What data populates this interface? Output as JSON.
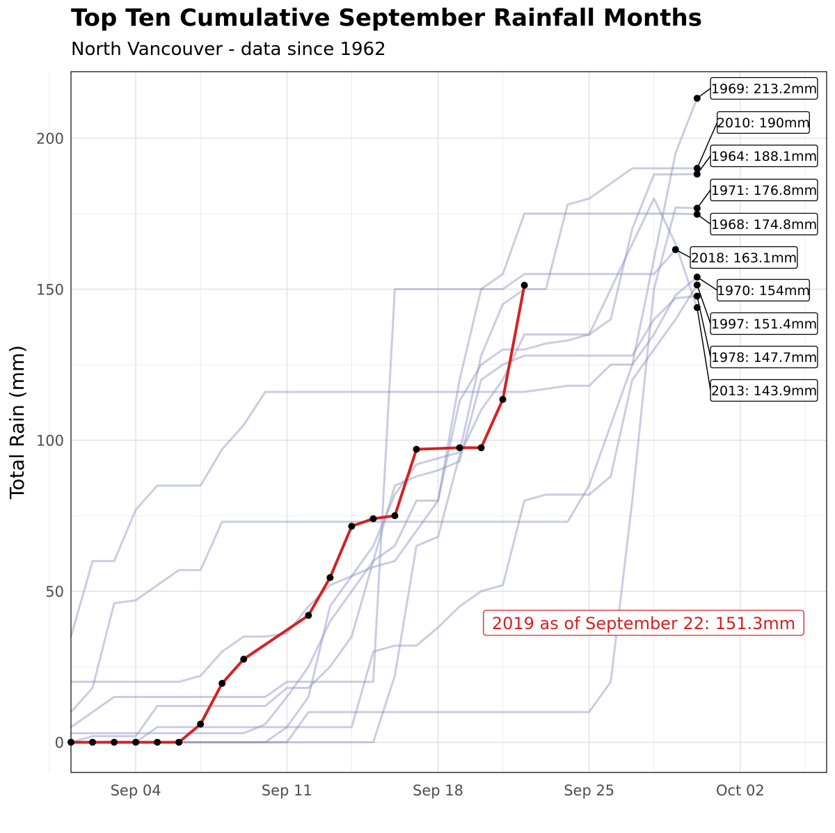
{
  "title": "Top Ten Cumulative September Rainfall Months",
  "subtitle": "North Vancouver - data since 1962",
  "chart_data": {
    "type": "line",
    "title": "Top Ten Cumulative September Rainfall Months",
    "subtitle": "North Vancouver - data since 1962",
    "ylabel": "Total Rain (mm)",
    "xlabel": "",
    "xlim": [
      "2019-09-01",
      "2019-10-06"
    ],
    "ylim": [
      -10,
      222
    ],
    "x_ticks": [
      {
        "date": "2019-09-04",
        "label": "Sep 04"
      },
      {
        "date": "2019-09-11",
        "label": "Sep 11"
      },
      {
        "date": "2019-09-18",
        "label": "Sep 18"
      },
      {
        "date": "2019-09-25",
        "label": "Sep 25"
      },
      {
        "date": "2019-10-02",
        "label": "Oct 02"
      }
    ],
    "y_ticks": [
      0,
      50,
      100,
      150,
      200
    ],
    "grid": true,
    "colors": {
      "historical": "#8a8ec4",
      "current": "#d62020",
      "points": "#000000",
      "annotation": "#d62020"
    },
    "current_series": {
      "name": "2019",
      "x": [
        "2019-09-01",
        "2019-09-02",
        "2019-09-03",
        "2019-09-04",
        "2019-09-05",
        "2019-09-06",
        "2019-09-07",
        "2019-09-08",
        "2019-09-09",
        "2019-09-12",
        "2019-09-13",
        "2019-09-14",
        "2019-09-15",
        "2019-09-16",
        "2019-09-17",
        "2019-09-19",
        "2019-09-20",
        "2019-09-21",
        "2019-09-22"
      ],
      "y": [
        0,
        0,
        0,
        0,
        0,
        0,
        6,
        19.5,
        27.5,
        42,
        54.5,
        71.5,
        74,
        75,
        97,
        97.5,
        97.5,
        113.5,
        151.3
      ]
    },
    "historical_series": [
      {
        "label": "1969: 213.2mm",
        "x": [
          "2019-09-01",
          "2019-09-02",
          "2019-09-03",
          "2019-09-04",
          "2019-09-05",
          "2019-09-06",
          "2019-09-07",
          "2019-09-08",
          "2019-09-09",
          "2019-09-10",
          "2019-09-11",
          "2019-09-12",
          "2019-09-13",
          "2019-09-14",
          "2019-09-15",
          "2019-09-16",
          "2019-09-17",
          "2019-09-18",
          "2019-09-19",
          "2019-09-20",
          "2019-09-21",
          "2019-09-22",
          "2019-09-23",
          "2019-09-24",
          "2019-09-25",
          "2019-09-26",
          "2019-09-27",
          "2019-09-28",
          "2019-09-29",
          "2019-09-30"
        ],
        "y": [
          10,
          18,
          46,
          47,
          52,
          57,
          57,
          73,
          73,
          73,
          73,
          73,
          73,
          73,
          73,
          73,
          73,
          73,
          73,
          73,
          73,
          73,
          73,
          73,
          85,
          105,
          125,
          160,
          195,
          213.2
        ]
      },
      {
        "label": "2010: 190mm",
        "x": [
          "2019-09-01",
          "2019-09-02",
          "2019-09-03",
          "2019-09-04",
          "2019-09-05",
          "2019-09-06",
          "2019-09-07",
          "2019-09-08",
          "2019-09-09",
          "2019-09-10",
          "2019-09-11",
          "2019-09-12",
          "2019-09-13",
          "2019-09-14",
          "2019-09-15",
          "2019-09-16",
          "2019-09-17",
          "2019-09-18",
          "2019-09-19",
          "2019-09-20",
          "2019-09-21",
          "2019-09-22",
          "2019-09-23",
          "2019-09-24",
          "2019-09-25",
          "2019-09-26",
          "2019-09-27",
          "2019-09-28",
          "2019-09-29",
          "2019-09-30"
        ],
        "y": [
          0,
          0,
          0,
          0,
          5,
          5,
          5,
          5,
          5,
          5,
          5,
          15,
          45,
          55,
          65,
          82,
          92,
          94,
          96,
          128,
          145,
          150,
          150,
          178,
          180,
          185,
          190,
          190,
          190,
          190
        ]
      },
      {
        "label": "1964: 188.1mm",
        "x": [
          "2019-09-01",
          "2019-09-02",
          "2019-09-03",
          "2019-09-04",
          "2019-09-05",
          "2019-09-06",
          "2019-09-07",
          "2019-09-08",
          "2019-09-09",
          "2019-09-10",
          "2019-09-11",
          "2019-09-12",
          "2019-09-13",
          "2019-09-14",
          "2019-09-15",
          "2019-09-16",
          "2019-09-17",
          "2019-09-18",
          "2019-09-19",
          "2019-09-20",
          "2019-09-21",
          "2019-09-22",
          "2019-09-23",
          "2019-09-24",
          "2019-09-25",
          "2019-09-26",
          "2019-09-27",
          "2019-09-28",
          "2019-09-29",
          "2019-09-30"
        ],
        "y": [
          0,
          0,
          0,
          0,
          0,
          0,
          0,
          0,
          0,
          0,
          0,
          0,
          0,
          0,
          0,
          22,
          65,
          68,
          95,
          110,
          120,
          135,
          135,
          135,
          135,
          140,
          170,
          188,
          188,
          188.1
        ]
      },
      {
        "label": "1971: 176.8mm",
        "x": [
          "2019-09-01",
          "2019-09-02",
          "2019-09-03",
          "2019-09-04",
          "2019-09-05",
          "2019-09-06",
          "2019-09-07",
          "2019-09-08",
          "2019-09-09",
          "2019-09-10",
          "2019-09-11",
          "2019-09-12",
          "2019-09-13",
          "2019-09-14",
          "2019-09-15",
          "2019-09-16",
          "2019-09-17",
          "2019-09-18",
          "2019-09-19",
          "2019-09-20",
          "2019-09-21",
          "2019-09-22",
          "2019-09-23",
          "2019-09-24",
          "2019-09-25",
          "2019-09-26",
          "2019-09-27",
          "2019-09-28",
          "2019-09-29",
          "2019-09-30"
        ],
        "y": [
          0,
          0,
          0,
          0,
          0,
          0,
          0,
          0,
          0,
          0,
          0,
          10,
          10,
          10,
          10,
          10,
          10,
          10,
          10,
          10,
          10,
          10,
          10,
          10,
          10,
          20,
          80,
          150,
          177,
          176.8
        ]
      },
      {
        "label": "1968: 174.8mm",
        "x": [
          "2019-09-01",
          "2019-09-02",
          "2019-09-03",
          "2019-09-04",
          "2019-09-05",
          "2019-09-06",
          "2019-09-07",
          "2019-09-08",
          "2019-09-09",
          "2019-09-10",
          "2019-09-11",
          "2019-09-12",
          "2019-09-13",
          "2019-09-14",
          "2019-09-15",
          "2019-09-16",
          "2019-09-17",
          "2019-09-18",
          "2019-09-19",
          "2019-09-20",
          "2019-09-21",
          "2019-09-22",
          "2019-09-23",
          "2019-09-24",
          "2019-09-25",
          "2019-09-26",
          "2019-09-27",
          "2019-09-28",
          "2019-09-29",
          "2019-09-30"
        ],
        "y": [
          20,
          20,
          20,
          20,
          20,
          20,
          22,
          30,
          35,
          35,
          36,
          45,
          52,
          55,
          58,
          60,
          70,
          80,
          120,
          150,
          155,
          175,
          175,
          175,
          175,
          175,
          175,
          175,
          175,
          174.8
        ]
      },
      {
        "label": "2018: 163.1mm",
        "x": [
          "2019-09-01",
          "2019-09-02",
          "2019-09-03",
          "2019-09-04",
          "2019-09-05",
          "2019-09-06",
          "2019-09-07",
          "2019-09-08",
          "2019-09-09",
          "2019-09-10",
          "2019-09-11",
          "2019-09-12",
          "2019-09-13",
          "2019-09-14",
          "2019-09-15",
          "2019-09-16",
          "2019-09-17",
          "2019-09-18",
          "2019-09-19",
          "2019-09-20",
          "2019-09-21",
          "2019-09-22",
          "2019-09-23",
          "2019-09-24",
          "2019-09-25",
          "2019-09-26",
          "2019-09-27",
          "2019-09-28",
          "2019-09-29"
        ],
        "y": [
          5,
          10,
          15,
          15,
          15,
          15,
          15,
          15,
          15,
          15,
          20,
          20,
          20,
          20,
          20,
          150,
          150,
          150,
          150,
          150,
          150,
          155,
          155,
          155,
          155,
          155,
          155,
          155,
          163.1
        ]
      },
      {
        "label": "1970: 154mm",
        "x": [
          "2019-09-01",
          "2019-09-02",
          "2019-09-03",
          "2019-09-04",
          "2019-09-05",
          "2019-09-06",
          "2019-09-07",
          "2019-09-08",
          "2019-09-09",
          "2019-09-10",
          "2019-09-11",
          "2019-09-12",
          "2019-09-13",
          "2019-09-14",
          "2019-09-15",
          "2019-09-16",
          "2019-09-17",
          "2019-09-18",
          "2019-09-19",
          "2019-09-20",
          "2019-09-21",
          "2019-09-22",
          "2019-09-23",
          "2019-09-24",
          "2019-09-25",
          "2019-09-26",
          "2019-09-27",
          "2019-09-28",
          "2019-09-29",
          "2019-09-30"
        ],
        "y": [
          35,
          60,
          60,
          77,
          85,
          85,
          85,
          97,
          105,
          116,
          116,
          116,
          116,
          116,
          116,
          116,
          116,
          116,
          116,
          116,
          116,
          116,
          117,
          118,
          118,
          125,
          125,
          135,
          148,
          154
        ]
      },
      {
        "label": "1997: 151.4mm",
        "x": [
          "2019-09-01",
          "2019-09-02",
          "2019-09-03",
          "2019-09-04",
          "2019-09-05",
          "2019-09-06",
          "2019-09-07",
          "2019-09-08",
          "2019-09-09",
          "2019-09-10",
          "2019-09-11",
          "2019-09-12",
          "2019-09-13",
          "2019-09-14",
          "2019-09-15",
          "2019-09-16",
          "2019-09-17",
          "2019-09-18",
          "2019-09-19",
          "2019-09-20",
          "2019-09-21",
          "2019-09-22",
          "2019-09-23",
          "2019-09-24",
          "2019-09-25",
          "2019-09-26",
          "2019-09-27",
          "2019-09-28",
          "2019-09-29",
          "2019-09-30"
        ],
        "y": [
          0,
          0,
          0,
          0,
          0,
          0,
          0,
          0,
          0,
          0,
          5,
          5,
          5,
          5,
          30,
          32,
          32,
          38,
          45,
          50,
          52,
          80,
          82,
          82,
          82,
          88,
          120,
          130,
          140,
          151.4
        ]
      },
      {
        "label": "1978: 147.7mm",
        "x": [
          "2019-09-01",
          "2019-09-02",
          "2019-09-03",
          "2019-09-04",
          "2019-09-05",
          "2019-09-06",
          "2019-09-07",
          "2019-09-08",
          "2019-09-09",
          "2019-09-10",
          "2019-09-11",
          "2019-09-12",
          "2019-09-13",
          "2019-09-14",
          "2019-09-15",
          "2019-09-16",
          "2019-09-17",
          "2019-09-18",
          "2019-09-19",
          "2019-09-20",
          "2019-09-21",
          "2019-09-22",
          "2019-09-23",
          "2019-09-24",
          "2019-09-25",
          "2019-09-26",
          "2019-09-27",
          "2019-09-28",
          "2019-09-29",
          "2019-09-30"
        ],
        "y": [
          3,
          3,
          3,
          3,
          3,
          3,
          3,
          3,
          3,
          6,
          15,
          25,
          40,
          50,
          60,
          85,
          88,
          90,
          93,
          120,
          125,
          128,
          128,
          128,
          128,
          128,
          128,
          140,
          147,
          147.7
        ]
      },
      {
        "label": "2013: 143.9mm",
        "x": [
          "2019-09-01",
          "2019-09-02",
          "2019-09-03",
          "2019-09-04",
          "2019-09-05",
          "2019-09-06",
          "2019-09-07",
          "2019-09-08",
          "2019-09-09",
          "2019-09-10",
          "2019-09-11",
          "2019-09-12",
          "2019-09-13",
          "2019-09-14",
          "2019-09-15",
          "2019-09-16",
          "2019-09-17",
          "2019-09-18",
          "2019-09-19",
          "2019-09-20",
          "2019-09-21",
          "2019-09-22",
          "2019-09-23",
          "2019-09-24",
          "2019-09-25",
          "2019-09-26",
          "2019-09-27",
          "2019-09-28",
          "2019-09-29",
          "2019-09-30"
        ],
        "y": [
          0,
          2,
          2,
          2,
          12,
          12,
          12,
          12,
          12,
          12,
          18,
          18,
          25,
          35,
          60,
          65,
          80,
          80,
          113,
          125,
          130,
          130,
          132,
          133,
          135,
          150,
          165,
          180,
          165,
          143.9
        ]
      }
    ],
    "label_positions": [
      {
        "label": "1969: 213.2mm"
      },
      {
        "label": "2010: 190mm"
      },
      {
        "label": "1964: 188.1mm"
      },
      {
        "label": "1971: 176.8mm"
      },
      {
        "label": "1968: 174.8mm"
      },
      {
        "label": "2018: 163.1mm"
      },
      {
        "label": "1970: 154mm"
      },
      {
        "label": "1997: 151.4mm"
      },
      {
        "label": "1978: 147.7mm"
      },
      {
        "label": "2013: 143.9mm"
      }
    ],
    "annotation": {
      "text": "2019 as of September 22: 151.3mm"
    }
  }
}
